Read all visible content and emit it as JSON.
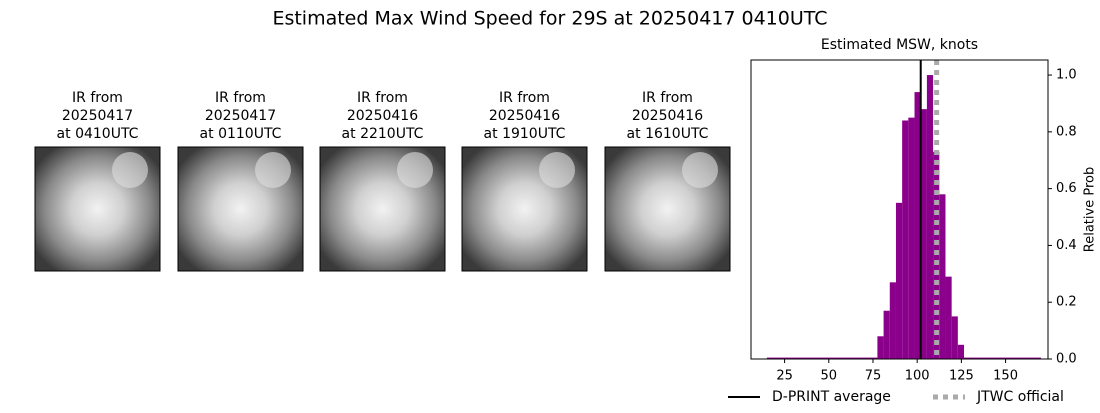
{
  "title": "Estimated Max Wind Speed for 29S at 20250417 0410UTC",
  "panels": [
    {
      "lines": [
        "IR from",
        "20250417",
        "at 0410UTC"
      ]
    },
    {
      "lines": [
        "IR from",
        "20250417",
        "at 0110UTC"
      ]
    },
    {
      "lines": [
        "IR from",
        "20250416",
        "at 2210UTC"
      ]
    },
    {
      "lines": [
        "IR from",
        "20250416",
        "at 1910UTC"
      ]
    },
    {
      "lines": [
        "IR from",
        "20250416",
        "at 1610UTC"
      ]
    }
  ],
  "chart_data": {
    "type": "histogram",
    "title": "Estimated MSW, knots",
    "ylabel": "Relative Prob",
    "color": "#8b008b",
    "bins": [
      15,
      77.5,
      81,
      84.5,
      88,
      91.5,
      95,
      98.5,
      102,
      105.5,
      109,
      112.5,
      116,
      119.5,
      123,
      126.5,
      170
    ],
    "counts": [
      0.005,
      0.08,
      0.17,
      0.27,
      0.55,
      0.84,
      0.85,
      0.94,
      0.88,
      1.0,
      0.73,
      0.58,
      0.29,
      0.15,
      0.05,
      0.005
    ],
    "xlim": [
      6,
      174
    ],
    "ylim": [
      0,
      1.053
    ],
    "xticks": [
      25,
      50,
      75,
      100,
      125,
      150
    ],
    "yticks": [
      {
        "value": 0,
        "label": "0.0"
      },
      0.2,
      0.4,
      0.6,
      0.8,
      {
        "value": 1,
        "label": "1.0"
      }
    ],
    "lines": [
      {
        "name": "D-PRINT average",
        "x": 102,
        "color": "#000000",
        "style": "solid"
      },
      {
        "name": "JTWC official",
        "x": 111,
        "color": "#aaaaaa",
        "style": "dotted"
      }
    ]
  }
}
